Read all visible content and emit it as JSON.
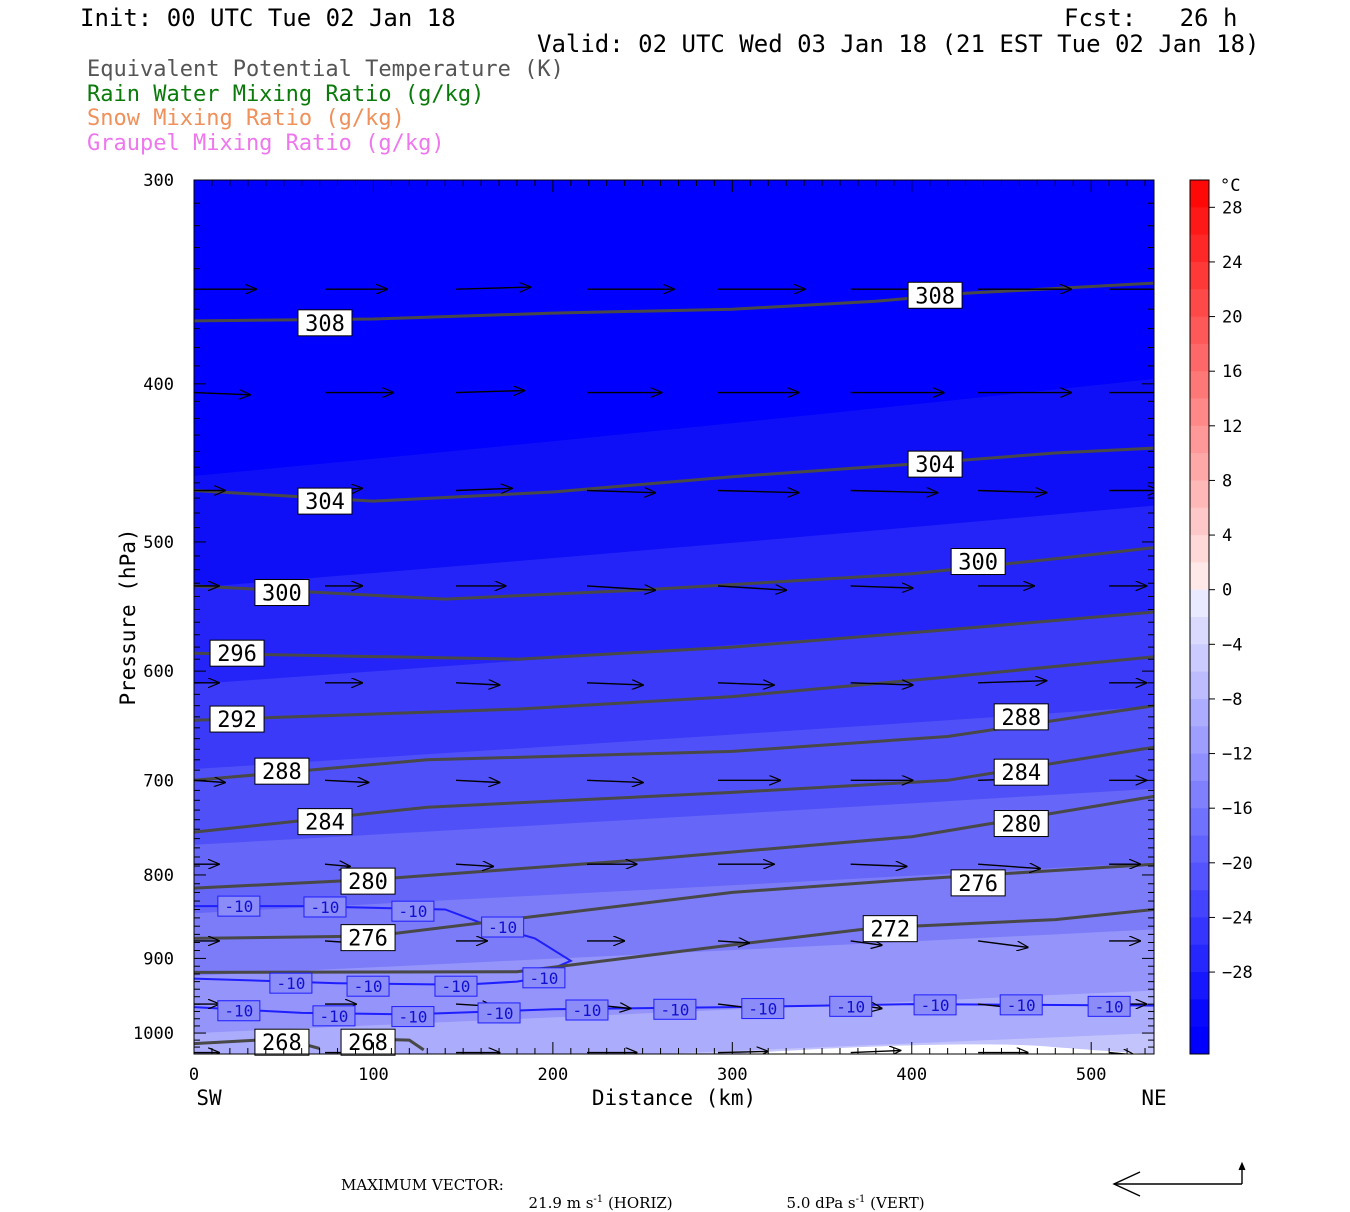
{
  "header": {
    "init": "Init: 00 UTC Tue 02 Jan 18",
    "fcst": "Fcst:   26 h",
    "valid": "Valid: 02 UTC Wed 03 Jan 18 (21 EST Tue 02 Jan 18)"
  },
  "legend": [
    {
      "text": "Equivalent Potential Temperature (K)",
      "color": "#555555"
    },
    {
      "text": "Rain Water Mixing Ratio (g/kg)",
      "color": "#0a7a0a"
    },
    {
      "text": "Snow Mixing Ratio (g/kg)",
      "color": "#f0905a"
    },
    {
      "text": "Graupel Mixing Ratio (g/kg)",
      "color": "#ee77ee"
    }
  ],
  "chart_data": {
    "type": "cross-section",
    "ylabel": "Pressure (hPa)",
    "xlabel": "Distance (km)",
    "x_left_label": "SW",
    "x_right_label": "NE",
    "xlim": [
      0,
      535
    ],
    "ylim": [
      300,
      1030
    ],
    "yscale": "log",
    "x_ticks": [
      0,
      100,
      200,
      300,
      400,
      500
    ],
    "y_ticks": [
      300,
      400,
      500,
      600,
      700,
      800,
      900,
      1000
    ],
    "temperature_fill": {
      "unit": "°C",
      "colorbar_ticks": [
        28,
        24,
        20,
        16,
        12,
        8,
        4,
        0,
        -4,
        -8,
        -12,
        -16,
        -20,
        -24,
        -28
      ],
      "bands": [
        {
          "temp": -34,
          "color": "#0000ff"
        },
        {
          "temp": -30,
          "color": "#0f0ff7"
        },
        {
          "temp": -26,
          "color": "#2424f8"
        },
        {
          "temp": -22,
          "color": "#3a3af8"
        },
        {
          "temp": -18,
          "color": "#5050f8"
        },
        {
          "temp": -14,
          "color": "#6666f8"
        },
        {
          "temp": -10,
          "color": "#7c7cf8"
        },
        {
          "temp": -6,
          "color": "#9494fa"
        },
        {
          "temp": -2,
          "color": "#acacfc"
        },
        {
          "temp": 0,
          "color": "#c4c4fc"
        },
        {
          "temp": 2,
          "color": "#ffffff"
        }
      ]
    },
    "theta_e_contours": [
      {
        "label": "308",
        "points": [
          [
            0,
            366
          ],
          [
            100,
            365
          ],
          [
            200,
            362
          ],
          [
            300,
            360
          ],
          [
            380,
            356
          ],
          [
            430,
            352
          ],
          [
            535,
            347
          ]
        ]
      },
      {
        "label": "304",
        "points": [
          [
            0,
            465
          ],
          [
            100,
            472
          ],
          [
            200,
            466
          ],
          [
            300,
            456
          ],
          [
            400,
            448
          ],
          [
            480,
            441
          ],
          [
            535,
            438
          ]
        ]
      },
      {
        "label": "300",
        "points": [
          [
            0,
            532
          ],
          [
            140,
            542
          ],
          [
            250,
            535
          ],
          [
            400,
            523
          ],
          [
            480,
            512
          ],
          [
            535,
            504
          ]
        ]
      },
      {
        "label": "296",
        "points": [
          [
            0,
            585
          ],
          [
            180,
            590
          ],
          [
            300,
            580
          ],
          [
            420,
            566
          ],
          [
            535,
            552
          ]
        ]
      },
      {
        "label": "292",
        "points": [
          [
            0,
            643
          ],
          [
            180,
            633
          ],
          [
            300,
            622
          ],
          [
            420,
            605
          ],
          [
            535,
            588
          ]
        ]
      },
      {
        "label": "288",
        "points": [
          [
            0,
            700
          ],
          [
            130,
            680
          ],
          [
            300,
            672
          ],
          [
            420,
            658
          ],
          [
            535,
            630
          ]
        ]
      },
      {
        "label": "284",
        "points": [
          [
            0,
            753
          ],
          [
            130,
            727
          ],
          [
            300,
            712
          ],
          [
            420,
            700
          ],
          [
            535,
            668
          ]
        ]
      },
      {
        "label": "280",
        "points": [
          [
            0,
            815
          ],
          [
            100,
            805
          ],
          [
            250,
            783
          ],
          [
            400,
            758
          ],
          [
            535,
            716
          ]
        ]
      },
      {
        "label": "276",
        "points": [
          [
            0,
            875
          ],
          [
            100,
            872
          ],
          [
            300,
            820
          ],
          [
            400,
            805
          ],
          [
            480,
            795
          ],
          [
            535,
            788
          ]
        ]
      },
      {
        "label": "272",
        "points": [
          [
            0,
            918
          ],
          [
            180,
            917
          ],
          [
            300,
            883
          ],
          [
            380,
            862
          ],
          [
            480,
            852
          ],
          [
            535,
            840
          ]
        ]
      },
      {
        "label": "268",
        "points": [
          [
            0,
            1015
          ],
          [
            50,
            1008
          ],
          [
            70,
            1022
          ]
        ]
      },
      {
        "label": "268",
        "points": [
          [
            90,
            1008
          ],
          [
            120,
            1010
          ],
          [
            128,
            1024
          ]
        ]
      }
    ],
    "theta_e_labels": [
      {
        "label": "308",
        "x": 73,
        "p": 367
      },
      {
        "label": "308",
        "x": 413,
        "p": 353
      },
      {
        "label": "304",
        "x": 73,
        "p": 472
      },
      {
        "label": "304",
        "x": 413,
        "p": 448
      },
      {
        "label": "300",
        "x": 49,
        "p": 537
      },
      {
        "label": "300",
        "x": 437,
        "p": 514
      },
      {
        "label": "296",
        "x": 24,
        "p": 585
      },
      {
        "label": "292",
        "x": 24,
        "p": 642
      },
      {
        "label": "288",
        "x": 49,
        "p": 691
      },
      {
        "label": "288",
        "x": 461,
        "p": 640
      },
      {
        "label": "284",
        "x": 73,
        "p": 742
      },
      {
        "label": "284",
        "x": 461,
        "p": 692
      },
      {
        "label": "280",
        "x": 97,
        "p": 807
      },
      {
        "label": "280",
        "x": 461,
        "p": 744
      },
      {
        "label": "276",
        "x": 97,
        "p": 874
      },
      {
        "label": "276",
        "x": 437,
        "p": 809
      },
      {
        "label": "272",
        "x": 388,
        "p": 863
      },
      {
        "label": "268",
        "x": 49,
        "p": 1013
      },
      {
        "label": "268",
        "x": 97,
        "p": 1013
      }
    ],
    "isotherm_contours": [
      {
        "label": "-10",
        "points": [
          [
            0,
            836
          ],
          [
            60,
            836
          ],
          [
            140,
            840
          ],
          [
            160,
            856
          ],
          [
            190,
            875
          ],
          [
            210,
            903
          ],
          [
            195,
            918
          ]
        ]
      },
      {
        "label": "-10",
        "points": [
          [
            0,
            926
          ],
          [
            80,
            932
          ],
          [
            150,
            934
          ],
          [
            180,
            930
          ],
          [
            200,
            922
          ]
        ]
      },
      {
        "label": "-10",
        "points": [
          [
            0,
            964
          ],
          [
            60,
            972
          ],
          [
            120,
            974
          ],
          [
            200,
            967
          ],
          [
            300,
            964
          ],
          [
            400,
            960
          ],
          [
            535,
            962
          ]
        ]
      }
    ],
    "isotherm_labels": [
      {
        "x": 25,
        "p": 836
      },
      {
        "x": 73,
        "p": 837
      },
      {
        "x": 122,
        "p": 842
      },
      {
        "x": 172,
        "p": 861
      },
      {
        "x": 54,
        "p": 932
      },
      {
        "x": 97,
        "p": 936
      },
      {
        "x": 146,
        "p": 936
      },
      {
        "x": 195,
        "p": 925
      },
      {
        "x": 25,
        "p": 969
      },
      {
        "x": 78,
        "p": 976
      },
      {
        "x": 122,
        "p": 977
      },
      {
        "x": 170,
        "p": 972
      },
      {
        "x": 219,
        "p": 968
      },
      {
        "x": 268,
        "p": 967
      },
      {
        "x": 317,
        "p": 966
      },
      {
        "x": 366,
        "p": 963
      },
      {
        "x": 413,
        "p": 961
      },
      {
        "x": 461,
        "p": 961
      },
      {
        "x": 510,
        "p": 963
      }
    ],
    "wind_vectors": {
      "description": "circulation vectors, mostly SW to NE (rightward)",
      "rows_hpa": [
        350,
        405,
        465,
        532,
        610,
        700,
        788,
        878,
        960,
        1028
      ],
      "x_km": [
        0,
        73,
        146,
        219,
        292,
        366,
        437,
        510
      ],
      "u": [
        [
          1.0,
          1.0,
          1.2,
          1.4,
          1.4,
          1.5,
          1.5,
          1.4
        ],
        [
          0.9,
          1.1,
          1.1,
          1.2,
          1.3,
          1.5,
          1.5,
          1.4
        ],
        [
          0.5,
          0.6,
          0.9,
          1.1,
          1.3,
          1.4,
          1.1,
          0.8
        ],
        [
          0.4,
          0.6,
          0.8,
          1.1,
          1.1,
          1.0,
          0.9,
          0.6
        ],
        [
          0.4,
          0.6,
          0.7,
          0.9,
          0.9,
          1.0,
          1.1,
          0.6
        ],
        [
          0.5,
          0.7,
          0.7,
          0.9,
          1.0,
          1.0,
          1.1,
          0.6
        ],
        [
          0.4,
          0.4,
          0.6,
          0.8,
          0.9,
          0.9,
          1.0,
          0.5
        ],
        [
          0.4,
          0.5,
          0.5,
          0.6,
          0.5,
          0.5,
          0.8,
          0.5
        ],
        [
          0.4,
          0.5,
          0.6,
          0.7,
          0.6,
          0.5,
          1.0,
          0.6
        ],
        [
          0.4,
          0.6,
          0.7,
          0.8,
          0.8,
          0.8,
          0.8,
          0.4
        ]
      ],
      "w": [
        [
          0,
          0,
          0.1,
          0,
          0,
          0,
          0,
          0
        ],
        [
          -0.1,
          0,
          0.1,
          0,
          0,
          0,
          0,
          0
        ],
        [
          0,
          0.1,
          0.1,
          -0.1,
          -0.1,
          -0.1,
          -0.1,
          0
        ],
        [
          0,
          0,
          0,
          -0.2,
          -0.2,
          -0.1,
          0,
          0
        ],
        [
          0,
          0,
          -0.1,
          -0.1,
          -0.1,
          -0.1,
          0.1,
          0
        ],
        [
          -0.1,
          -0.1,
          -0.1,
          -0.1,
          0,
          0,
          0.1,
          0
        ],
        [
          0,
          -0.1,
          -0.1,
          0,
          0,
          -0.1,
          -0.2,
          0
        ],
        [
          0,
          -0.1,
          0,
          0,
          -0.1,
          -0.2,
          -0.3,
          0
        ],
        [
          0,
          0,
          -0.1,
          -0.2,
          -0.2,
          -0.2,
          -0.3,
          0
        ],
        [
          0,
          0,
          0,
          0,
          0.05,
          0.1,
          0,
          -0.1
        ]
      ]
    }
  },
  "footer": {
    "max_vector_label": "MAXIMUM VECTOR:",
    "horiz_value": "21.9 m s",
    "horiz_unit_exp": "-1",
    "horiz_tag": "(HORIZ)",
    "vert_value": "5.0 dPa s",
    "vert_unit_exp": "-1",
    "vert_tag": "(VERT)"
  }
}
